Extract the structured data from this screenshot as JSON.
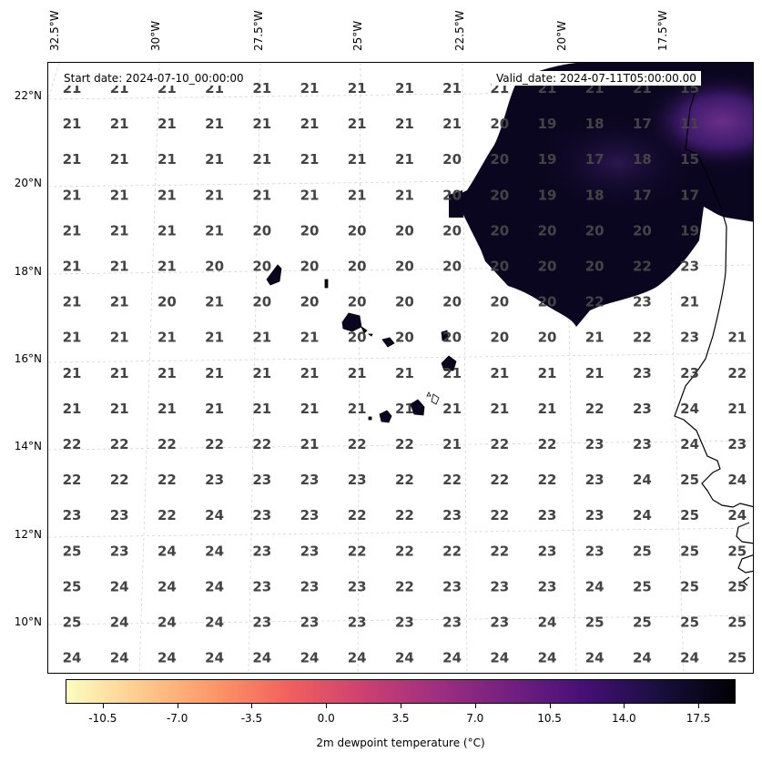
{
  "start_date": "Start date: 2024-07-10_00:00:00",
  "valid_date": "Valid_date: 2024-07-11T05:00:00.00",
  "lon_labels": [
    "32.5°W",
    "30°W",
    "27.5°W",
    "25°W",
    "22.5°W",
    "20°W",
    "17.5°W"
  ],
  "lat_labels": [
    "22°N",
    "20°N",
    "18°N",
    "16°N",
    "14°N",
    "12°N",
    "10°N"
  ],
  "colorbar": {
    "title": "2m dewpoint temperature (°C)",
    "ticks": [
      "-10.5",
      "-7.0",
      "-3.5",
      "0.0",
      "3.5",
      "7.0",
      "10.5",
      "14.0",
      "17.5"
    ],
    "range": [
      -12.25,
      19.25
    ],
    "colors": [
      "#fcfdbf",
      "#feca8d",
      "#fd9668",
      "#f1605d",
      "#cd4071",
      "#9e2f7f",
      "#721f81",
      "#440f76",
      "#180f3d",
      "#000004"
    ]
  },
  "grid_values": [
    [
      "21",
      "21",
      "21",
      "21",
      "21",
      "21",
      "21",
      "21",
      "21",
      "21",
      "21",
      "21",
      "21",
      "15"
    ],
    [
      "21",
      "21",
      "21",
      "21",
      "21",
      "21",
      "21",
      "21",
      "21",
      "20",
      "19",
      "18",
      "17",
      "11"
    ],
    [
      "21",
      "21",
      "21",
      "21",
      "21",
      "21",
      "21",
      "21",
      "20",
      "20",
      "19",
      "17",
      "18",
      "15"
    ],
    [
      "21",
      "21",
      "21",
      "21",
      "21",
      "21",
      "21",
      "21",
      "20",
      "20",
      "19",
      "18",
      "17",
      "17"
    ],
    [
      "21",
      "21",
      "21",
      "21",
      "20",
      "20",
      "20",
      "20",
      "20",
      "20",
      "20",
      "20",
      "20",
      "19"
    ],
    [
      "21",
      "21",
      "21",
      "20",
      "20",
      "20",
      "20",
      "20",
      "20",
      "20",
      "20",
      "20",
      "22",
      "23"
    ],
    [
      "21",
      "21",
      "20",
      "21",
      "20",
      "20",
      "20",
      "20",
      "20",
      "20",
      "20",
      "22",
      "23",
      "21"
    ],
    [
      "21",
      "21",
      "21",
      "21",
      "21",
      "21",
      "20",
      "20",
      "20",
      "20",
      "20",
      "21",
      "22",
      "23",
      "21"
    ],
    [
      "21",
      "21",
      "21",
      "21",
      "21",
      "21",
      "21",
      "21",
      "21",
      "21",
      "21",
      "21",
      "23",
      "23",
      "22"
    ],
    [
      "21",
      "21",
      "21",
      "21",
      "21",
      "21",
      "21",
      "21",
      "21",
      "21",
      "21",
      "22",
      "23",
      "24",
      "21"
    ],
    [
      "22",
      "22",
      "22",
      "22",
      "22",
      "21",
      "22",
      "22",
      "21",
      "22",
      "22",
      "23",
      "23",
      "24",
      "23"
    ],
    [
      "22",
      "22",
      "22",
      "23",
      "23",
      "23",
      "23",
      "22",
      "22",
      "22",
      "22",
      "23",
      "24",
      "25",
      "24"
    ],
    [
      "23",
      "23",
      "22",
      "24",
      "23",
      "23",
      "22",
      "22",
      "23",
      "22",
      "23",
      "23",
      "24",
      "25",
      "24"
    ],
    [
      "25",
      "23",
      "24",
      "24",
      "23",
      "23",
      "22",
      "22",
      "22",
      "22",
      "23",
      "23",
      "25",
      "25",
      "25"
    ],
    [
      "25",
      "24",
      "24",
      "24",
      "23",
      "23",
      "23",
      "22",
      "23",
      "23",
      "23",
      "24",
      "25",
      "25",
      "25"
    ],
    [
      "25",
      "24",
      "24",
      "24",
      "23",
      "23",
      "23",
      "23",
      "23",
      "23",
      "24",
      "25",
      "25",
      "25",
      "25"
    ],
    [
      "24",
      "24",
      "24",
      "24",
      "24",
      "24",
      "24",
      "24",
      "24",
      "24",
      "24",
      "24",
      "24",
      "24",
      "25"
    ]
  ]
}
